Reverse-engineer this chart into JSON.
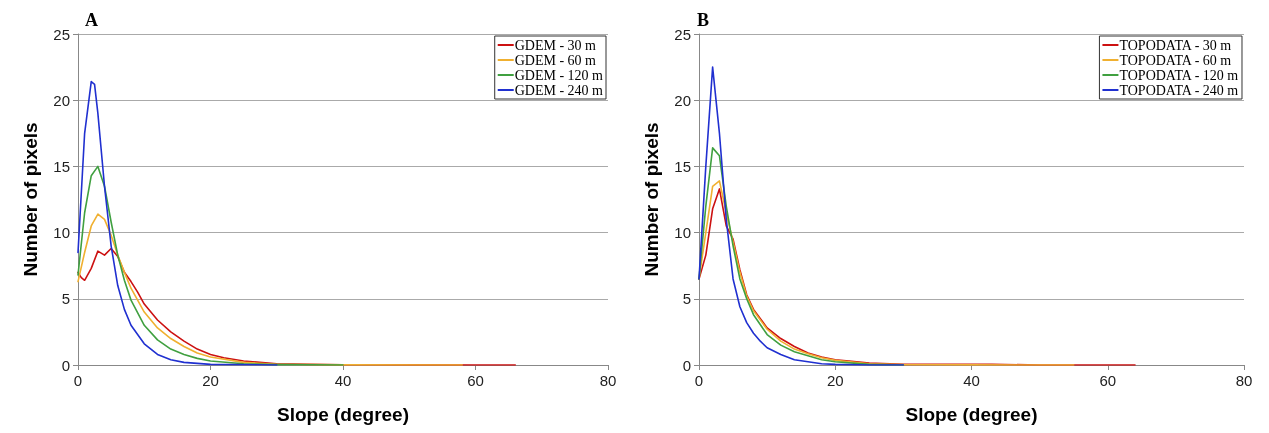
{
  "chart_data": [
    {
      "type": "line",
      "title": "A",
      "xlabel": "Slope (degree)",
      "ylabel": "Number of pixels",
      "xlim": [
        0,
        80
      ],
      "xticks": [
        0,
        20,
        40,
        60,
        80
      ],
      "ylim": [
        0,
        25
      ],
      "yticks": [
        0,
        5,
        10,
        15,
        20,
        25
      ],
      "grid": "y",
      "legend": "top right",
      "marker": "none",
      "line_style": "solid",
      "series": [
        {
          "name": "GDEM - 30 m",
          "color": "#cc1111",
          "x": [
            0,
            0.5,
            1,
            2,
            3,
            4,
            5,
            6,
            7,
            8,
            9,
            10,
            12,
            14,
            16,
            18,
            20,
            22,
            25,
            30,
            35,
            40,
            50,
            60,
            66
          ],
          "values": [
            7.0,
            6.6,
            6.4,
            7.3,
            8.6,
            8.3,
            8.8,
            8.2,
            7.0,
            6.3,
            5.5,
            4.6,
            3.4,
            2.5,
            1.8,
            1.2,
            0.8,
            0.55,
            0.3,
            0.1,
            0.05,
            0.02,
            0.01,
            0,
            0
          ]
        },
        {
          "name": "GDEM - 60 m",
          "color": "#f0b030",
          "x": [
            0,
            1,
            2,
            3,
            4,
            5,
            6,
            7,
            8,
            10,
            12,
            14,
            16,
            18,
            20,
            25,
            30,
            40,
            58
          ],
          "values": [
            6.3,
            8.5,
            10.5,
            11.4,
            11.0,
            9.8,
            8.3,
            7.0,
            5.8,
            4.0,
            2.8,
            2.0,
            1.4,
            0.9,
            0.6,
            0.2,
            0.06,
            0.01,
            0
          ]
        },
        {
          "name": "GDEM - 120 m",
          "color": "#40a040",
          "x": [
            0,
            1,
            2,
            3,
            4,
            5,
            6,
            7,
            8,
            10,
            12,
            14,
            16,
            18,
            20,
            25,
            30,
            40
          ],
          "values": [
            6.8,
            11.5,
            14.3,
            15.0,
            13.5,
            10.8,
            8.3,
            6.4,
            4.9,
            3.0,
            1.9,
            1.2,
            0.8,
            0.5,
            0.3,
            0.1,
            0.03,
            0
          ]
        },
        {
          "name": "GDEM - 240 m",
          "color": "#2030d0",
          "x": [
            0,
            1,
            2,
            2.5,
            3,
            4,
            5,
            6,
            7,
            8,
            10,
            12,
            14,
            16,
            20,
            30
          ],
          "values": [
            8.5,
            17.5,
            21.4,
            21.2,
            19,
            13.5,
            9,
            6.0,
            4.2,
            3.0,
            1.6,
            0.8,
            0.4,
            0.2,
            0.05,
            0
          ]
        }
      ]
    },
    {
      "type": "line",
      "title": "B",
      "xlabel": "Slope (degree)",
      "ylabel": "Number of pixels",
      "xlim": [
        0,
        80
      ],
      "xticks": [
        0,
        20,
        40,
        60,
        80
      ],
      "ylim": [
        0,
        25
      ],
      "yticks": [
        0,
        5,
        10,
        15,
        20,
        25
      ],
      "grid": "y",
      "legend": "top right",
      "marker": "none",
      "line_style": "solid",
      "series": [
        {
          "name": "TOPODATA - 30 m",
          "color": "#cc1111",
          "x": [
            0,
            1,
            2,
            3,
            4,
            5,
            6,
            7,
            8,
            10,
            12,
            14,
            16,
            18,
            20,
            22,
            25,
            30,
            43,
            50,
            64
          ],
          "values": [
            6.5,
            8.3,
            11.8,
            13.3,
            10.5,
            9.5,
            7.2,
            5.3,
            4.2,
            2.8,
            2.0,
            1.4,
            0.9,
            0.6,
            0.4,
            0.3,
            0.15,
            0.05,
            0.05,
            0,
            0
          ]
        },
        {
          "name": "TOPODATA - 60 m",
          "color": "#f0b030",
          "x": [
            0,
            1,
            2,
            3,
            4,
            5,
            6,
            7,
            8,
            10,
            12,
            14,
            16,
            18,
            20,
            25,
            30,
            40,
            55
          ],
          "values": [
            6.5,
            10,
            13.5,
            13.9,
            11.5,
            9.3,
            7,
            5.2,
            4.1,
            2.7,
            1.8,
            1.2,
            0.85,
            0.55,
            0.35,
            0.1,
            0.03,
            0.01,
            0
          ]
        },
        {
          "name": "TOPODATA - 120 m",
          "color": "#40a040",
          "x": [
            0,
            1,
            2,
            3,
            4,
            5,
            6,
            7,
            8,
            10,
            12,
            14,
            16,
            18,
            20,
            25,
            30
          ],
          "values": [
            6.5,
            12,
            16.4,
            15.8,
            12,
            9,
            6.5,
            5.0,
            3.8,
            2.3,
            1.5,
            1.0,
            0.7,
            0.4,
            0.25,
            0.05,
            0
          ]
        },
        {
          "name": "TOPODATA - 240 m",
          "color": "#2030d0",
          "x": [
            0,
            1,
            2,
            3,
            4,
            5,
            6,
            7,
            8,
            9,
            10,
            12,
            14,
            16,
            18,
            20,
            25,
            30
          ],
          "values": [
            6.5,
            15,
            22.5,
            17.5,
            11,
            6.5,
            4.4,
            3.2,
            2.4,
            1.8,
            1.3,
            0.8,
            0.4,
            0.25,
            0.1,
            0.05,
            0,
            0
          ]
        }
      ]
    }
  ]
}
